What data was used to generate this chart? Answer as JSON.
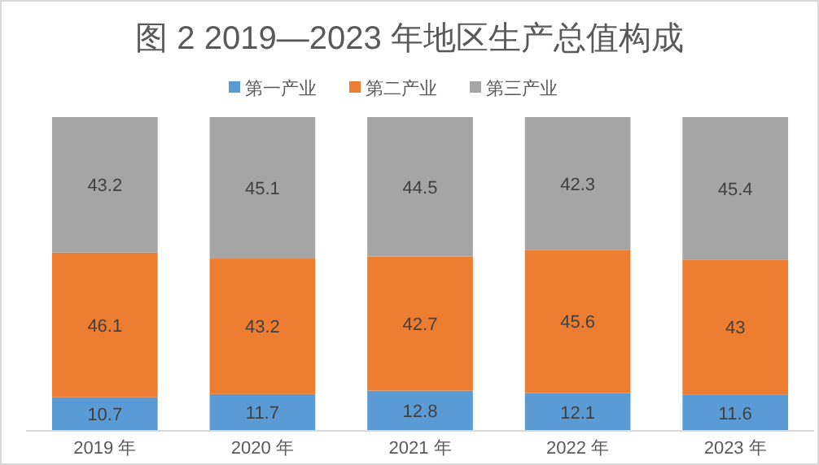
{
  "chart_data": {
    "type": "bar",
    "title": "图 2 2019—2023 年地区生产总值构成",
    "categories": [
      "2019 年",
      "2020 年",
      "2021 年",
      "2022 年",
      "2023 年"
    ],
    "stacked": true,
    "data_labels": true,
    "legend": "top",
    "series": [
      {
        "name": "第一产业",
        "color": "#5b9bd5",
        "values": [
          10.7,
          11.7,
          12.8,
          12.1,
          11.6
        ]
      },
      {
        "name": "第二产业",
        "color": "#ed7d31",
        "values": [
          46.1,
          43.2,
          42.7,
          45.6,
          43
        ]
      },
      {
        "name": "第三产业",
        "color": "#a5a5a5",
        "values": [
          43.2,
          45.1,
          44.5,
          42.3,
          45.4
        ]
      }
    ]
  }
}
